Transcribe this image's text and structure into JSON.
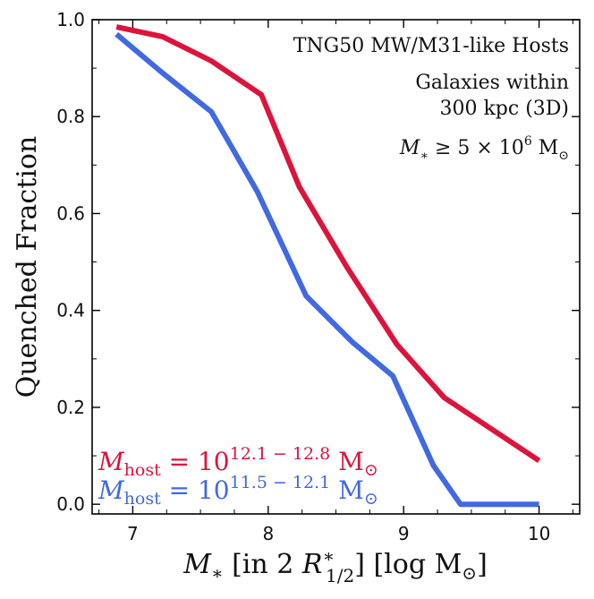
{
  "chart_data": {
    "type": "line",
    "xlabel": "M* [in 2 R*1/2] [log M☉]",
    "ylabel": "Quenched Fraction",
    "xlim": [
      6.7,
      10.3
    ],
    "ylim": [
      -0.02,
      1.0
    ],
    "xticks": [
      7,
      8,
      9,
      10
    ],
    "yticks": [
      0.0,
      0.2,
      0.4,
      0.6,
      0.8,
      1.0
    ],
    "xtick_labels": [
      "7",
      "8",
      "9",
      "10"
    ],
    "ytick_labels": [
      "0.0",
      "0.2",
      "0.4",
      "0.6",
      "0.8",
      "1.0"
    ],
    "grid": false,
    "annotations": [
      "TNG50 MW/M31-like Hosts",
      "Galaxies within",
      "300 kpc (3D)",
      "M* ≥ 5 × 10⁶ M☉"
    ],
    "series": [
      {
        "name": "Mhost = 10^12.1−12.8 M☉",
        "color": "#dc143c",
        "x": [
          6.88,
          7.22,
          7.58,
          7.95,
          8.23,
          8.58,
          8.95,
          9.3,
          10.0
        ],
        "y": [
          0.985,
          0.965,
          0.915,
          0.845,
          0.655,
          0.49,
          0.33,
          0.22,
          0.09
        ]
      },
      {
        "name": "Mhost = 10^11.5−12.1 M☉",
        "color": "#4169e1",
        "x": [
          6.88,
          7.22,
          7.58,
          7.92,
          8.28,
          8.62,
          8.92,
          9.22,
          9.42,
          10.0
        ],
        "y": [
          0.97,
          0.89,
          0.81,
          0.645,
          0.43,
          0.335,
          0.265,
          0.08,
          0.0,
          0.0
        ]
      }
    ],
    "legend": {
      "placement": "bottom-left",
      "items": [
        {
          "prefix": "M",
          "sub": "host",
          "base": " = 10",
          "sup": "12.1 − 12.8",
          "unit": "M",
          "unit_sub": "⊙"
        },
        {
          "prefix": "M",
          "sub": "host",
          "base": " = 10",
          "sup": "11.5 − 12.1",
          "unit": "M",
          "unit_sub": "⊙"
        }
      ]
    }
  }
}
